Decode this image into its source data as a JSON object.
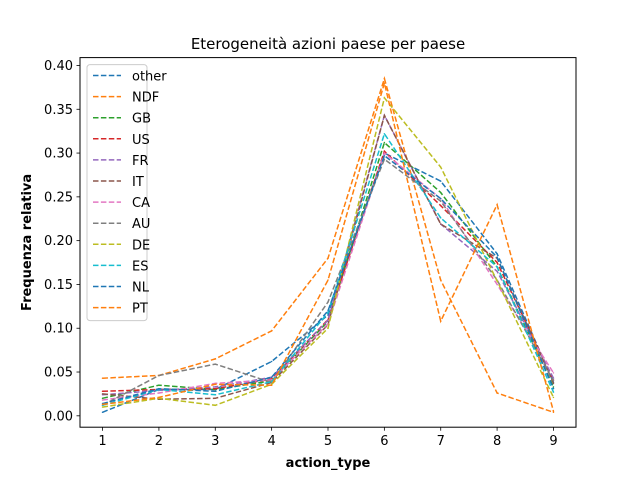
{
  "chart_data": {
    "type": "line",
    "title": "Eterogeneità azioni paese per paese",
    "xlabel": "action_type",
    "ylabel": "Frequenza relativa",
    "x": [
      1,
      2,
      3,
      4,
      5,
      6,
      7,
      8,
      9
    ],
    "xlim": [
      0.6,
      9.4
    ],
    "ylim": [
      -0.013,
      0.409
    ],
    "xticks": [
      "1",
      "2",
      "3",
      "4",
      "5",
      "6",
      "7",
      "8",
      "9"
    ],
    "yticks": [
      "0.00",
      "0.05",
      "0.10",
      "0.15",
      "0.20",
      "0.25",
      "0.30",
      "0.35",
      "0.40"
    ],
    "ytick_values": [
      0,
      0.05,
      0.1,
      0.15,
      0.2,
      0.25,
      0.3,
      0.35,
      0.4
    ],
    "legend_position": "upper-left",
    "line_style": "dashed",
    "series": [
      {
        "name": "other",
        "color": "#1f77b4",
        "values": [
          0.004,
          0.03,
          0.03,
          0.062,
          0.115,
          0.3,
          0.268,
          0.185,
          0.038
        ]
      },
      {
        "name": "NDF",
        "color": "#ff7f0e",
        "values": [
          0.043,
          0.046,
          0.065,
          0.097,
          0.18,
          0.385,
          0.155,
          0.026,
          0.004
        ]
      },
      {
        "name": "GB",
        "color": "#2ca02c",
        "values": [
          0.02,
          0.035,
          0.03,
          0.04,
          0.108,
          0.312,
          0.255,
          0.17,
          0.033
        ]
      },
      {
        "name": "US",
        "color": "#d62728",
        "values": [
          0.028,
          0.03,
          0.031,
          0.042,
          0.11,
          0.302,
          0.24,
          0.175,
          0.041
        ]
      },
      {
        "name": "FR",
        "color": "#9467bd",
        "values": [
          0.024,
          0.029,
          0.033,
          0.044,
          0.109,
          0.343,
          0.219,
          0.165,
          0.043
        ]
      },
      {
        "name": "IT",
        "color": "#8c564b",
        "values": [
          0.025,
          0.019,
          0.02,
          0.038,
          0.104,
          0.343,
          0.219,
          0.18,
          0.037
        ]
      },
      {
        "name": "CA",
        "color": "#e377c2",
        "values": [
          0.018,
          0.026,
          0.037,
          0.041,
          0.105,
          0.3,
          0.248,
          0.15,
          0.049
        ]
      },
      {
        "name": "AU",
        "color": "#7f7f7f",
        "values": [
          0.012,
          0.046,
          0.059,
          0.038,
          0.13,
          0.293,
          0.245,
          0.155,
          0.04
        ]
      },
      {
        "name": "DE",
        "color": "#bcbd22",
        "values": [
          0.01,
          0.02,
          0.012,
          0.036,
          0.1,
          0.363,
          0.284,
          0.154,
          0.021
        ]
      },
      {
        "name": "ES",
        "color": "#17becf",
        "values": [
          0.012,
          0.03,
          0.024,
          0.039,
          0.118,
          0.322,
          0.226,
          0.17,
          0.027
        ]
      },
      {
        "name": "NL",
        "color": "#1f77b4",
        "values": [
          0.014,
          0.031,
          0.028,
          0.044,
          0.12,
          0.297,
          0.248,
          0.181,
          0.031
        ]
      },
      {
        "name": "PT",
        "color": "#ff7f0e",
        "values": [
          0.013,
          0.021,
          0.036,
          0.035,
          0.155,
          0.38,
          0.108,
          0.241,
          0.005
        ]
      }
    ]
  }
}
